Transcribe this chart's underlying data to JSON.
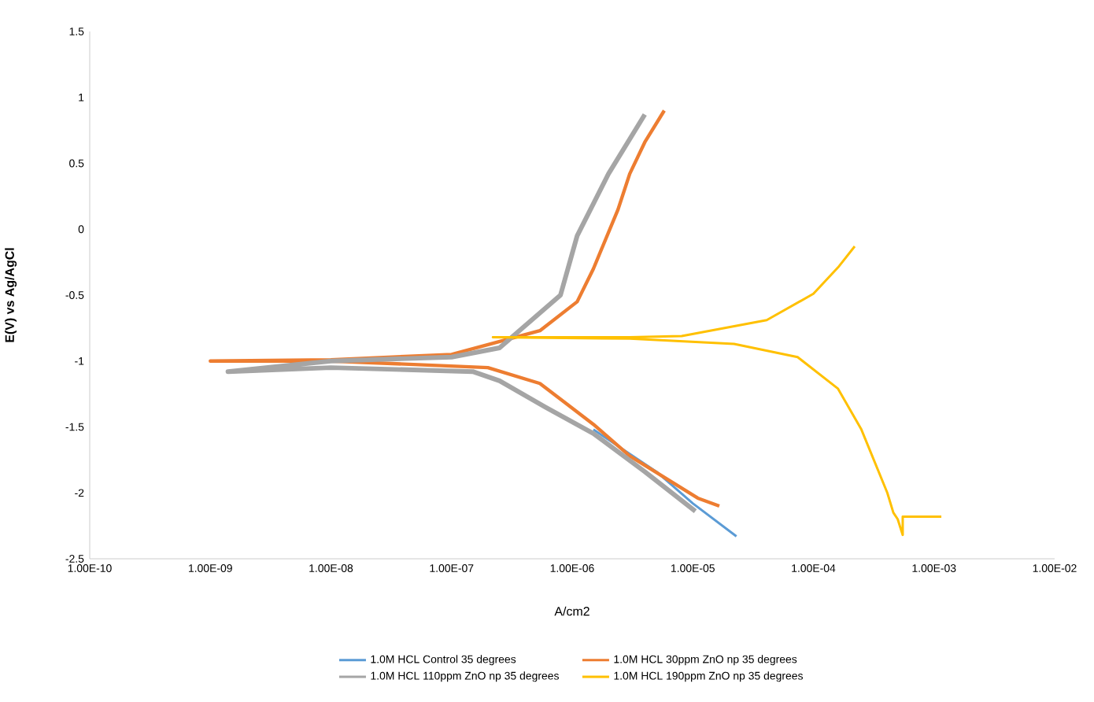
{
  "chart_data": {
    "type": "line",
    "xlabel": "A/cm2",
    "ylabel": "E(V) vs Ag/AgCl",
    "log": "x",
    "grid": false,
    "legend": "bottom",
    "marker": "none",
    "line_style": "solid",
    "xlim": [
      1e-10,
      0.01
    ],
    "ylim": [
      -2.5,
      1.5
    ],
    "xticks": [
      {
        "value": 1e-10,
        "label": "1.00E-10"
      },
      {
        "value": 1e-09,
        "label": "1.00E-09"
      },
      {
        "value": 1e-08,
        "label": "1.00E-08"
      },
      {
        "value": 1e-07,
        "label": "1.00E-07"
      },
      {
        "value": 1e-06,
        "label": "1.00E-06"
      },
      {
        "value": 1e-05,
        "label": "1.00E-05"
      },
      {
        "value": 0.0001,
        "label": "1.00E-04"
      },
      {
        "value": 0.001,
        "label": "1.00E-03"
      },
      {
        "value": 0.01,
        "label": "1.00E-02"
      }
    ],
    "yticks": [
      -2.5,
      -2,
      -1.5,
      -1,
      -0.5,
      0,
      0.5,
      1,
      1.5
    ],
    "series": [
      {
        "name": "1.0M HCL Control 35 degrees",
        "color": "#5b9bd5",
        "x": [
          1.5e-06,
          5e-06,
          1e-05,
          2.3e-05
        ],
        "values": [
          -1.52,
          -1.84,
          -2.08,
          -2.33
        ]
      },
      {
        "name": "1.0M HCL 30ppm ZnO np 35 degrees",
        "color": "#ed7d31",
        "x": [
          1.66e-05,
          1.1e-05,
          3e-06,
          1.5e-06,
          5.4e-07,
          2e-07,
          1e-08,
          1e-09,
          1e-08,
          1e-07,
          5.4e-07,
          1.1e-06,
          1.5e-06,
          2.4e-06,
          3e-06,
          4e-06,
          5.8e-06
        ],
        "values": [
          -2.1,
          -2.04,
          -1.72,
          -1.48,
          -1.17,
          -1.05,
          -1.0,
          -1.0,
          -0.99,
          -0.95,
          -0.77,
          -0.55,
          -0.3,
          0.15,
          0.42,
          0.66,
          0.9
        ]
      },
      {
        "name": "1.0M HCL 110ppm ZnO np 35 degrees",
        "color": "#a5a5a5",
        "x": [
          1.05e-05,
          4e-06,
          1.5e-06,
          6e-07,
          2.5e-07,
          1.5e-07,
          1e-08,
          1.4e-09,
          1e-08,
          1e-07,
          2.5e-07,
          8e-07,
          1.1e-06,
          2e-06,
          4e-06
        ],
        "values": [
          -2.14,
          -1.84,
          -1.55,
          -1.35,
          -1.15,
          -1.08,
          -1.05,
          -1.08,
          -1.0,
          -0.97,
          -0.9,
          -0.5,
          -0.05,
          0.42,
          0.87
        ]
      },
      {
        "name": "1.0M HCL 190ppm ZnO np 35 degrees",
        "color": "#ffc000",
        "x": [
          0.00115,
          0.00055,
          0.00055,
          0.0005,
          0.00046,
          0.00041,
          0.00025,
          0.00016,
          7.4e-05,
          2.2e-05,
          3e-06,
          2.2e-07,
          3e-06,
          8.1e-06,
          4.1e-05,
          0.0001,
          0.00016,
          0.00022
        ],
        "values": [
          -2.18,
          -2.18,
          -2.32,
          -2.2,
          -2.15,
          -2.0,
          -1.52,
          -1.21,
          -0.97,
          -0.87,
          -0.83,
          -0.82,
          -0.82,
          -0.81,
          -0.69,
          -0.49,
          -0.29,
          -0.13
        ]
      }
    ]
  }
}
